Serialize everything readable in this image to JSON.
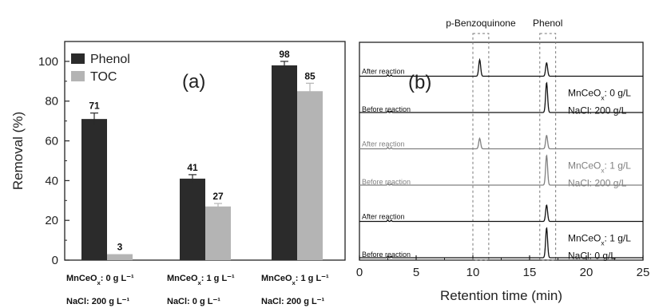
{
  "chart_data": [
    {
      "type": "bar",
      "panel_label": "(a)",
      "ylabel": "Removal (%)",
      "ylim": [
        0,
        110
      ],
      "yticks": [
        "0",
        "20",
        "40",
        "60",
        "80",
        "100"
      ],
      "legend": {
        "placement": "top-left"
      },
      "categories": [
        {
          "line1": "MnCeOx: 0 g L⁻¹",
          "line2": "NaCl: 200 g L⁻¹"
        },
        {
          "line1": "MnCeOx: 1 g L⁻¹",
          "line2": "NaCl: 0 g L⁻¹"
        },
        {
          "line1": "MnCeOx: 1 g L⁻¹",
          "line2": "NaCl: 200 g L⁻¹"
        }
      ],
      "series": [
        {
          "name": "Phenol",
          "color": "#2b2b2b",
          "values": [
            71,
            41,
            98
          ],
          "labels": [
            "71",
            "41",
            "98"
          ],
          "errors": [
            3,
            2,
            2
          ]
        },
        {
          "name": "TOC",
          "color": "#b4b4b4",
          "values": [
            3,
            27,
            85
          ],
          "labels": [
            "3",
            "27",
            "85"
          ],
          "errors": [
            0,
            1.5,
            4
          ]
        }
      ]
    },
    {
      "type": "line",
      "panel_label": "(b)",
      "xlabel": "Retention time (min)",
      "xlim": [
        0,
        25
      ],
      "xticks": [
        "0",
        "5",
        "10",
        "15",
        "20",
        "25"
      ],
      "peak_tags": [
        {
          "text": "p-Benzoquinone",
          "x_range": [
            10,
            11.4
          ]
        },
        {
          "text": "Phenol",
          "x_range": [
            15.9,
            17.3
          ]
        }
      ],
      "groups": [
        {
          "color": "#111111",
          "condition": [
            "MnCeOx: 0 g/L",
            "NaCl: 200 g/L"
          ],
          "traces": [
            {
              "label": "After reaction",
              "peaks": [
                {
                  "x": 10.6,
                  "h": 0.55
                },
                {
                  "x": 16.5,
                  "h": 0.45
                }
              ]
            },
            {
              "label": "Before reaction",
              "peaks": [
                {
                  "x": 16.5,
                  "h": 1.0
                }
              ]
            }
          ]
        },
        {
          "color": "#808080",
          "condition": [
            "MnCeOx: 1 g/L",
            "NaCl: 200 g/L"
          ],
          "traces": [
            {
              "label": "After reaction",
              "peaks": [
                {
                  "x": 10.6,
                  "h": 0.35
                },
                {
                  "x": 16.5,
                  "h": 0.45
                }
              ]
            },
            {
              "label": "Before reaction",
              "peaks": [
                {
                  "x": 16.5,
                  "h": 1.0
                }
              ]
            }
          ]
        },
        {
          "color": "#111111",
          "condition": [
            "MnCeOx: 1 g/L",
            "NaCl: 0 g/L"
          ],
          "traces": [
            {
              "label": "After reaction",
              "peaks": [
                {
                  "x": 16.5,
                  "h": 0.55
                }
              ]
            },
            {
              "label": "Before reaction",
              "peaks": [
                {
                  "x": 16.5,
                  "h": 1.0
                }
              ]
            }
          ]
        }
      ]
    }
  ]
}
